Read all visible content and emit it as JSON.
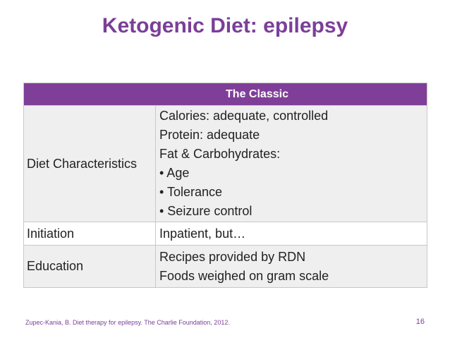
{
  "slide": {
    "title": "Ketogenic Diet: epilepsy",
    "footer_citation": "Zupec-Kania, B. Diet therapy for epilepsy. The Charlie Foundation, 2012.",
    "page_number": "16"
  },
  "table": {
    "header": "The Classic",
    "rows": [
      {
        "label": "Diet Characteristics",
        "lines": [
          "Calories: adequate, controlled",
          "Protein: adequate",
          "Fat & Carbohydrates:",
          "• Age",
          "• Tolerance",
          "• Seizure control"
        ]
      },
      {
        "label": "Initiation",
        "lines": [
          "Inpatient, but…"
        ]
      },
      {
        "label": "Education",
        "lines": [
          "Recipes provided by RDN",
          "Foods weighed on gram scale"
        ]
      }
    ]
  },
  "colors": {
    "accent": "#7b3f98",
    "header_bg": "#7f3f98",
    "row_shade": "#efefef"
  }
}
